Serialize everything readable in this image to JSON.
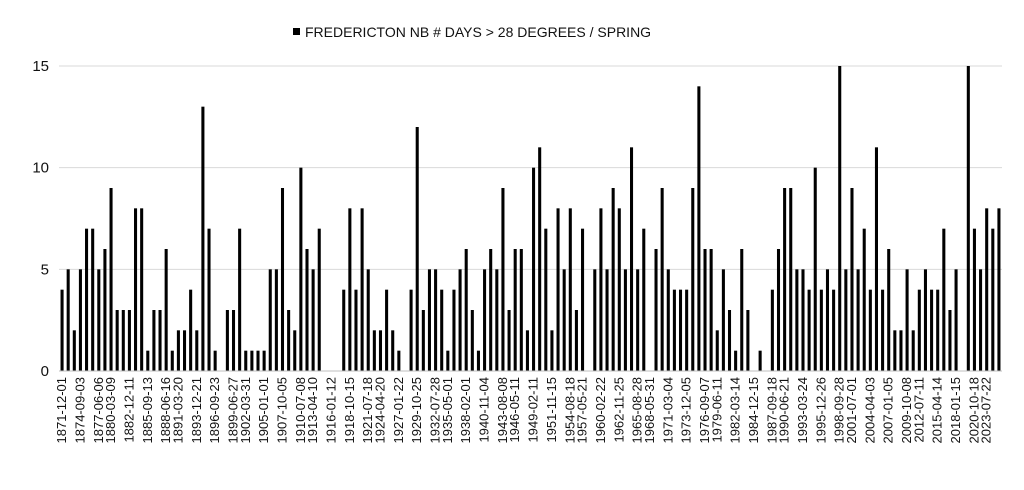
{
  "chart_data": {
    "type": "bar",
    "legend": "FREDERICTON NB # DAYS > 28  DEGREES  / SPRING",
    "legend_placement": "top-center",
    "series_color": "#000000",
    "grid": true,
    "ylim": [
      0,
      15
    ],
    "yticks": [
      0,
      5,
      10,
      15
    ],
    "xtick_labels": [
      "1871-12-01",
      "1874-09-03",
      "1877-06-06",
      "1880-03-09",
      "1882-12-11",
      "1885-09-13",
      "1888-06-16",
      "1891-03-20",
      "1893-12-21",
      "1896-09-23",
      "1899-06-27",
      "1902-03-31",
      "1905-01-01",
      "1907-10-05",
      "1910-07-08",
      "1913-04-10",
      "1916-01-12",
      "1918-10-15",
      "1921-07-18",
      "1924-04-20",
      "1927-01-22",
      "1929-10-25",
      "1932-07-28",
      "1935-05-01",
      "1938-02-01",
      "1940-11-04",
      "1943-08-08",
      "1946-05-11",
      "1949-02-11",
      "1951-11-15",
      "1954-08-18",
      "1957-05-21",
      "1960-02-22",
      "1962-11-25",
      "1965-08-28",
      "1968-05-31",
      "1971-03-04",
      "1973-12-05",
      "1976-09-07",
      "1979-06-11",
      "1982-03-14",
      "1984-12-15",
      "1987-09-18",
      "1990-06-21",
      "1993-03-24",
      "1995-12-26",
      "1998-09-28",
      "2001-07-01",
      "2004-04-03",
      "2007-01-05",
      "2009-10-08",
      "2012-07-11",
      "2015-04-14",
      "2018-01-15",
      "2020-10-18",
      "2023-07-22"
    ],
    "values": [
      4,
      5,
      2,
      5,
      7,
      7,
      5,
      6,
      9,
      3,
      3,
      3,
      8,
      8,
      1,
      3,
      3,
      6,
      1,
      2,
      2,
      4,
      2,
      13,
      7,
      1,
      0,
      3,
      3,
      7,
      1,
      1,
      1,
      1,
      5,
      5,
      9,
      3,
      2,
      10,
      6,
      5,
      7,
      0,
      0,
      0,
      4,
      8,
      4,
      8,
      5,
      2,
      2,
      4,
      2,
      1,
      0,
      4,
      12,
      3,
      5,
      5,
      4,
      1,
      4,
      5,
      6,
      3,
      1,
      5,
      6,
      5,
      9,
      3,
      6,
      6,
      2,
      10,
      11,
      7,
      2,
      8,
      5,
      8,
      3,
      7,
      0,
      5,
      8,
      5,
      9,
      8,
      5,
      11,
      5,
      7,
      0,
      6,
      9,
      5,
      4,
      4,
      4,
      9,
      14,
      6,
      6,
      2,
      5,
      3,
      1,
      6,
      3,
      0,
      1,
      0,
      4,
      6,
      9,
      9,
      5,
      5,
      4,
      10,
      4,
      5,
      4,
      15,
      5,
      9,
      5,
      7,
      4,
      11,
      4,
      6,
      2,
      2,
      5,
      2,
      4,
      5,
      4,
      4,
      7,
      3,
      5,
      0,
      15,
      7,
      5,
      8,
      7,
      8
    ]
  }
}
